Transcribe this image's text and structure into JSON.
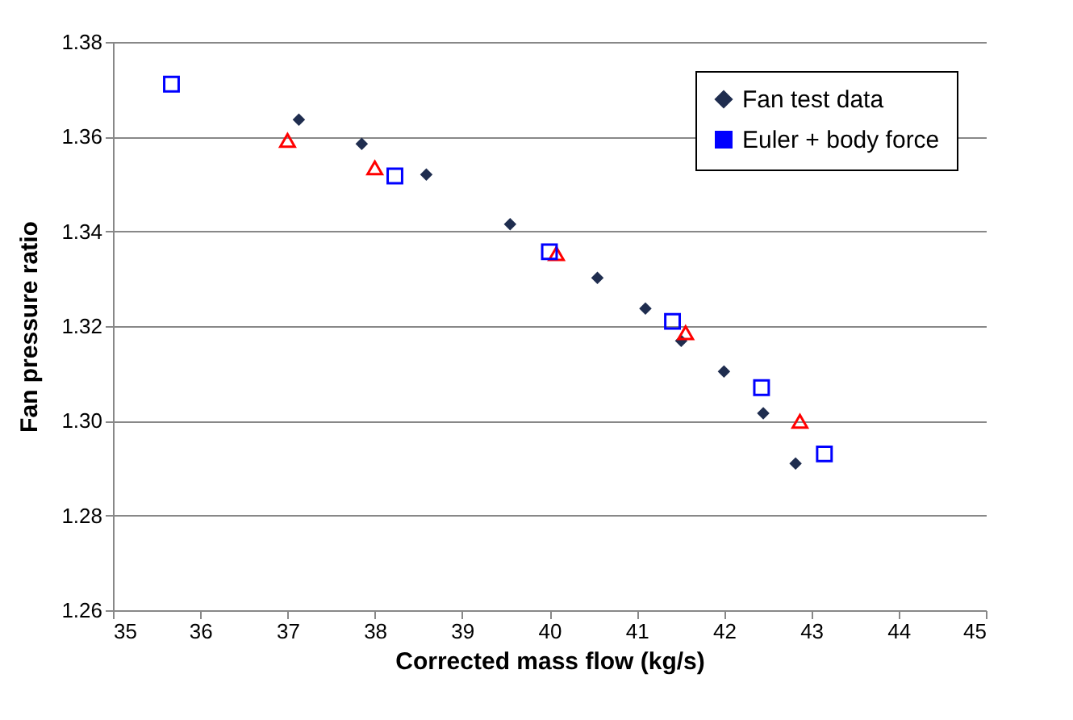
{
  "chart_data": {
    "type": "scatter",
    "xlabel": "Corrected mass flow (kg/s)",
    "ylabel": "Fan pressure ratio",
    "xlim": [
      35,
      45
    ],
    "xticks": [
      35,
      36,
      37,
      38,
      39,
      40,
      41,
      42,
      43,
      44,
      45
    ],
    "ylim": [
      1.26,
      1.38
    ],
    "yticks": [
      1.26,
      1.28,
      {
        "value": 1.3,
        "label": "1.30"
      },
      1.32,
      1.34,
      1.36,
      1.38
    ],
    "grid": "y",
    "legend": "top right",
    "series": [
      {
        "name": "Fan test data",
        "color": "#1f2d4f",
        "marker": "diamond",
        "x": [
          37.13,
          37.85,
          38.59,
          39.55,
          40.55,
          41.1,
          41.51,
          42.0,
          42.45,
          42.82
        ],
        "values": [
          1.3636,
          1.3585,
          1.352,
          1.3415,
          1.3302,
          1.3237,
          1.3169,
          1.3104,
          1.3016,
          1.291
        ]
      },
      {
        "color": "#ff0000",
        "marker": "triangle",
        "x": [
          37.0,
          38.0,
          40.08,
          41.56,
          42.87
        ],
        "values": [
          1.3592,
          1.3534,
          1.3353,
          1.3186,
          1.2999
        ]
      },
      {
        "name": "Euler + body force",
        "color": "#0000ff",
        "marker": "square",
        "x": [
          35.67,
          38.23,
          40.0,
          41.41,
          42.43,
          43.15
        ],
        "values": [
          1.3711,
          1.3517,
          1.3357,
          1.321,
          1.307,
          1.293
        ]
      }
    ]
  }
}
